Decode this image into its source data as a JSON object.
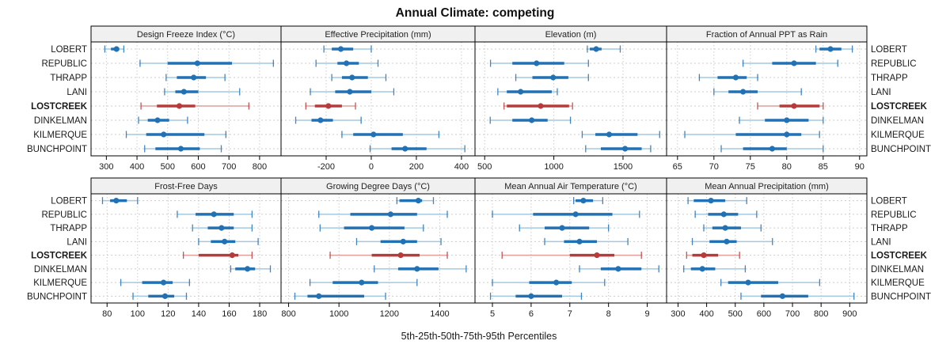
{
  "chart_data": {
    "type": "dotplot-intervals",
    "title": "Annual Climate: competing",
    "xlabel": "5th-25th-50th-75th-95th Percentiles",
    "percentile_labels": [
      "5th",
      "25th",
      "50th",
      "75th",
      "95th"
    ],
    "sites": [
      "LOBERT",
      "REPUBLIC",
      "THRAPP",
      "LANI",
      "LOSTCREEK",
      "DINKELMAN",
      "KILMERQUE",
      "BUNCHPOINT"
    ],
    "highlight_site": "LOSTCREEK",
    "colors": {
      "series": "#2171b5",
      "series_light": "#a3c9e2",
      "highlight": "#b63b3a",
      "highlight_light": "#dda09c",
      "grid": "#cccccc",
      "strip_bg": "#f0f0f0",
      "panel_border": "#000000"
    },
    "layout": {
      "rows": 2,
      "cols": 4,
      "grid": "dotted",
      "legend": "none"
    },
    "panels": [
      {
        "label": "Design Freeze Index (°C)",
        "xlim": [
          250,
          870
        ],
        "ticks": [
          300,
          400,
          500,
          600,
          700,
          800
        ],
        "percentiles": [
          [
            295,
            315,
            333,
            342,
            357
          ],
          [
            410,
            500,
            597,
            710,
            845
          ],
          [
            495,
            530,
            585,
            625,
            687
          ],
          [
            490,
            525,
            553,
            600,
            735
          ],
          [
            413,
            465,
            538,
            590,
            765
          ],
          [
            405,
            435,
            467,
            505,
            565
          ],
          [
            365,
            430,
            487,
            620,
            690
          ],
          [
            425,
            460,
            543,
            605,
            675
          ]
        ]
      },
      {
        "label": "Effective Precipitation (mm)",
        "xlim": [
          -400,
          460
        ],
        "ticks": [
          -200,
          0,
          200,
          400
        ],
        "percentiles": [
          [
            -210,
            -175,
            -135,
            -80,
            0
          ],
          [
            -245,
            -150,
            -110,
            -55,
            30
          ],
          [
            -175,
            -130,
            -85,
            -15,
            65
          ],
          [
            -270,
            -160,
            -95,
            0,
            100
          ],
          [
            -290,
            -250,
            -190,
            -130,
            -70
          ],
          [
            -335,
            -265,
            -225,
            -170,
            -45
          ],
          [
            -130,
            -80,
            10,
            140,
            300
          ],
          [
            -5,
            90,
            150,
            245,
            415
          ]
        ]
      },
      {
        "label": "Elevation (m)",
        "xlim": [
          430,
          1815
        ],
        "ticks": [
          500,
          1000,
          1500
        ],
        "percentiles": [
          [
            1242,
            1260,
            1306,
            1345,
            1480
          ],
          [
            542,
            700,
            875,
            1075,
            1250
          ],
          [
            725,
            845,
            995,
            1105,
            1250
          ],
          [
            595,
            660,
            760,
            985,
            1025
          ],
          [
            640,
            660,
            905,
            1110,
            1135
          ],
          [
            540,
            700,
            840,
            955,
            1120
          ],
          [
            1205,
            1300,
            1400,
            1605,
            1765
          ],
          [
            1230,
            1340,
            1515,
            1635,
            1700
          ]
        ]
      },
      {
        "label": "Fraction of Annual PPT as Rain",
        "xlim": [
          63.5,
          91
        ],
        "ticks": [
          65,
          70,
          75,
          80,
          85,
          90
        ],
        "percentiles": [
          [
            84,
            84.5,
            86,
            87.5,
            89
          ],
          [
            74,
            78,
            81,
            84,
            87
          ],
          [
            68,
            70.5,
            73,
            74.5,
            76
          ],
          [
            70,
            72,
            74,
            76,
            82
          ],
          [
            76,
            79,
            81,
            84.5,
            85
          ],
          [
            73.5,
            77,
            80,
            83,
            85
          ],
          [
            66,
            73,
            80,
            82,
            84.5
          ],
          [
            71,
            74,
            78,
            80,
            85
          ]
        ]
      },
      {
        "label": "Frost-Free Days",
        "xlim": [
          69.5,
          194
        ],
        "ticks": [
          80,
          100,
          120,
          140,
          160,
          180
        ],
        "percentiles": [
          [
            77,
            82,
            86,
            93,
            100
          ],
          [
            126,
            138,
            150,
            163,
            175
          ],
          [
            136,
            146,
            155,
            163,
            175
          ],
          [
            140,
            148,
            157,
            164,
            179
          ],
          [
            130,
            140,
            162,
            166,
            175
          ],
          [
            161,
            164,
            172,
            177,
            187
          ],
          [
            89,
            103,
            117,
            123,
            134
          ],
          [
            97,
            107,
            118,
            124,
            132
          ]
        ]
      },
      {
        "label": "Growing Degree Days (°C)",
        "xlim": [
          770,
          1540
        ],
        "ticks": [
          800,
          1000,
          1200,
          1400
        ],
        "percentiles": [
          [
            1230,
            1240,
            1315,
            1330,
            1375
          ],
          [
            920,
            1045,
            1205,
            1310,
            1430
          ],
          [
            925,
            1020,
            1130,
            1260,
            1335
          ],
          [
            1070,
            1165,
            1255,
            1310,
            1405
          ],
          [
            965,
            1130,
            1245,
            1320,
            1430
          ],
          [
            1140,
            1235,
            1310,
            1395,
            1505
          ],
          [
            885,
            975,
            1090,
            1155,
            1310
          ],
          [
            825,
            875,
            920,
            1100,
            1185
          ]
        ]
      },
      {
        "label": "Mean Annual Air Temperature (°C)",
        "xlim": [
          4.55,
          9.5
        ],
        "ticks": [
          5,
          6,
          7,
          8,
          9
        ],
        "percentiles": [
          [
            7.1,
            7.15,
            7.35,
            7.6,
            7.85
          ],
          [
            5.0,
            6.05,
            7.15,
            8.1,
            8.8
          ],
          [
            5.7,
            6.35,
            6.8,
            7.5,
            8.0
          ],
          [
            6.35,
            6.85,
            7.25,
            7.7,
            8.5
          ],
          [
            5.25,
            7.0,
            7.7,
            8.15,
            8.85
          ],
          [
            7.25,
            7.8,
            8.25,
            8.85,
            9.3
          ],
          [
            5.0,
            5.95,
            6.65,
            7.05,
            7.9
          ],
          [
            4.95,
            5.6,
            6.0,
            6.8,
            7.3
          ]
        ]
      },
      {
        "label": "Mean Annual Precipitation (mm)",
        "xlim": [
          260,
          960
        ],
        "ticks": [
          300,
          400,
          500,
          600,
          700,
          800,
          900
        ],
        "percentiles": [
          [
            335,
            355,
            415,
            465,
            540
          ],
          [
            360,
            405,
            460,
            510,
            575
          ],
          [
            390,
            420,
            465,
            520,
            590
          ],
          [
            350,
            410,
            470,
            505,
            630
          ],
          [
            330,
            350,
            390,
            440,
            515
          ],
          [
            320,
            345,
            385,
            430,
            535
          ],
          [
            450,
            475,
            545,
            650,
            795
          ],
          [
            520,
            590,
            665,
            755,
            915
          ]
        ]
      }
    ]
  }
}
